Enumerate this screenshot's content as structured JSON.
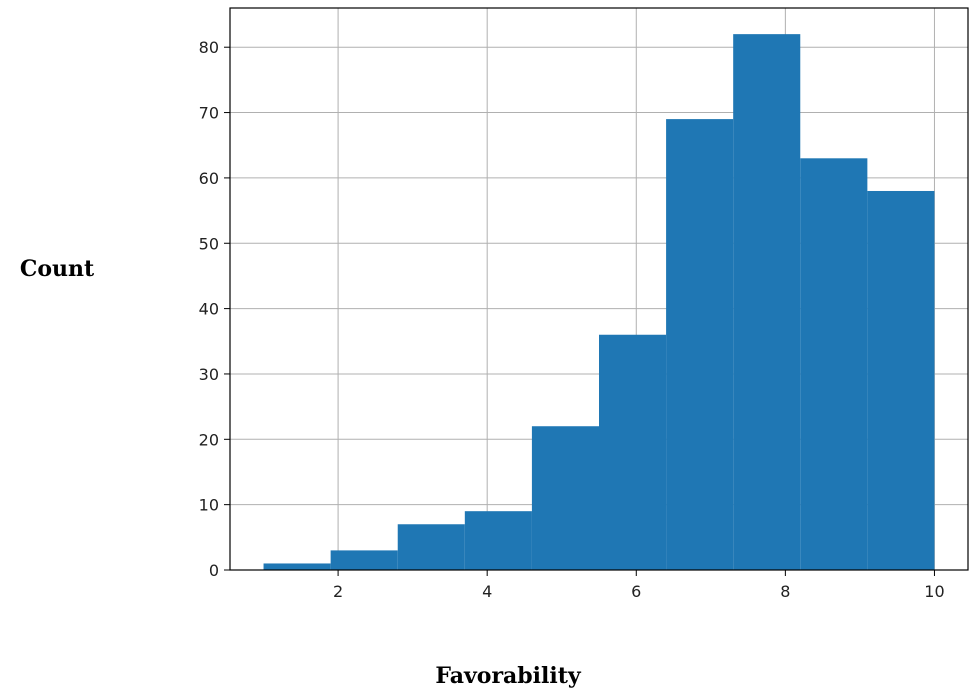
{
  "chart_data": {
    "type": "histogram",
    "xlabel": "Favorability",
    "ylabel": "Count",
    "bins": [
      {
        "x0": 1.0,
        "x1": 1.9,
        "count": 1
      },
      {
        "x0": 1.9,
        "x1": 2.8,
        "count": 3
      },
      {
        "x0": 2.8,
        "x1": 3.7,
        "count": 7
      },
      {
        "x0": 3.7,
        "x1": 4.6,
        "count": 9
      },
      {
        "x0": 4.6,
        "x1": 5.5,
        "count": 22
      },
      {
        "x0": 5.5,
        "x1": 6.4,
        "count": 36
      },
      {
        "x0": 6.4,
        "x1": 7.3,
        "count": 69
      },
      {
        "x0": 7.3,
        "x1": 8.2,
        "count": 82
      },
      {
        "x0": 8.2,
        "x1": 9.1,
        "count": 63
      },
      {
        "x0": 9.1,
        "x1": 10.0,
        "count": 58
      }
    ],
    "xticks": [
      2,
      4,
      6,
      8,
      10
    ],
    "yticks": [
      0,
      10,
      20,
      30,
      40,
      50,
      60,
      70,
      80
    ],
    "xlim": [
      0.55,
      10.45
    ],
    "ylim": [
      0,
      86
    ],
    "grid": true,
    "colors": {
      "bar": "#1f77b4",
      "grid": "#b0b0b0",
      "axis": "#000000"
    }
  }
}
